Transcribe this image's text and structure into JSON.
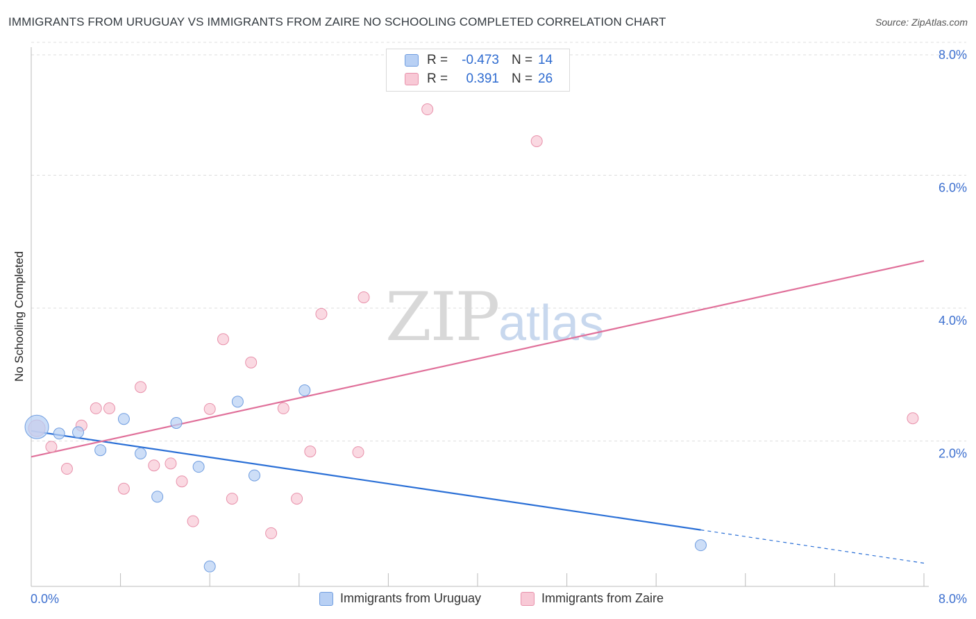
{
  "title": "IMMIGRANTS FROM URUGUAY VS IMMIGRANTS FROM ZAIRE NO SCHOOLING COMPLETED CORRELATION CHART",
  "source": "Source: ZipAtlas.com",
  "colors": {
    "uruguay_fill": "#b8d0f4",
    "uruguay_stroke": "#6f9de0",
    "uruguay_line": "#2a6fd6",
    "zaire_fill": "#f8c9d6",
    "zaire_stroke": "#e890aa",
    "zaire_line": "#e0709a",
    "tick_text": "#3c6fcf",
    "grid": "#dcdcdc"
  },
  "legend": {
    "rows": [
      {
        "r_label": "R =",
        "r_value": "-0.473",
        "n_label": "N =",
        "n_value": "14"
      },
      {
        "r_label": "R =",
        "r_value": "0.391",
        "n_label": "N =",
        "n_value": "26"
      }
    ]
  },
  "chart_data": {
    "type": "scatter",
    "title": "IMMIGRANTS FROM URUGUAY VS IMMIGRANTS FROM ZAIRE NO SCHOOLING COMPLETED CORRELATION CHART",
    "xlabel": "",
    "ylabel": "No Schooling Completed",
    "xlim": [
      0,
      8
    ],
    "ylim": [
      0,
      8
    ],
    "x_tick_labels": [
      "0.0%",
      "8.0%"
    ],
    "y_tick_labels": [
      "2.0%",
      "4.0%",
      "6.0%",
      "8.0%"
    ],
    "y_ticks": [
      2,
      4,
      6,
      8
    ],
    "watermark": {
      "zip": "ZIP",
      "atlas": "atlas"
    },
    "series": [
      {
        "name": "Immigrants from Uruguay",
        "points": [
          [
            0.05,
            2.4
          ],
          [
            0.25,
            2.3
          ],
          [
            0.42,
            2.32
          ],
          [
            0.62,
            2.05
          ],
          [
            0.83,
            2.52
          ],
          [
            0.98,
            2.0
          ],
          [
            1.13,
            1.35
          ],
          [
            1.3,
            2.46
          ],
          [
            1.5,
            1.8
          ],
          [
            1.6,
            0.3
          ],
          [
            1.85,
            2.78
          ],
          [
            2.0,
            1.67
          ],
          [
            2.45,
            2.95
          ],
          [
            6.0,
            0.62
          ]
        ],
        "trend": {
          "x0": 0.0,
          "y0": 2.34,
          "x1": 6.0,
          "y1": 0.85,
          "dash_x1": 8.0,
          "dash_y1": 0.35
        }
      },
      {
        "name": "Immigrants from Zaire",
        "points": [
          [
            0.05,
            2.38
          ],
          [
            0.18,
            2.1
          ],
          [
            0.32,
            1.77
          ],
          [
            0.45,
            2.42
          ],
          [
            0.58,
            2.68
          ],
          [
            0.7,
            2.68
          ],
          [
            0.83,
            1.47
          ],
          [
            0.98,
            3.0
          ],
          [
            1.1,
            1.82
          ],
          [
            1.25,
            1.85
          ],
          [
            1.35,
            1.58
          ],
          [
            1.45,
            0.98
          ],
          [
            1.6,
            2.67
          ],
          [
            1.72,
            3.72
          ],
          [
            1.8,
            1.32
          ],
          [
            1.97,
            3.37
          ],
          [
            2.15,
            0.8
          ],
          [
            2.26,
            2.68
          ],
          [
            2.38,
            1.32
          ],
          [
            2.5,
            2.03
          ],
          [
            2.6,
            4.1
          ],
          [
            2.93,
            2.02
          ],
          [
            2.98,
            4.35
          ],
          [
            3.55,
            7.18
          ],
          [
            4.53,
            6.7
          ],
          [
            7.9,
            2.53
          ]
        ],
        "trend": {
          "x0": 0.0,
          "y0": 1.95,
          "x1": 8.0,
          "y1": 4.9
        }
      }
    ]
  }
}
